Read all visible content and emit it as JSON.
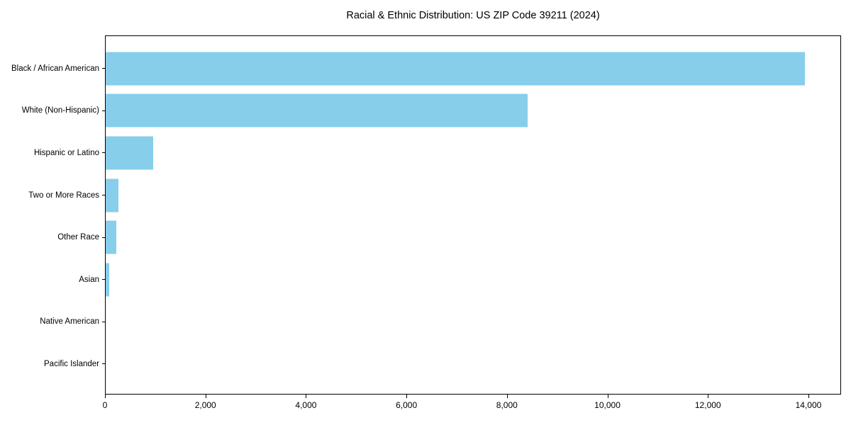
{
  "chart_data": {
    "type": "bar",
    "orientation": "horizontal",
    "title": "Racial & Ethnic Distribution: US ZIP Code 39211 (2024)",
    "categories": [
      "Black / African American",
      "White (Non-Hispanic)",
      "Hispanic or Latino",
      "Two or More Races",
      "Other Race",
      "Asian",
      "Native American",
      "Pacific Islander"
    ],
    "values": [
      13950,
      8420,
      950,
      260,
      210,
      65,
      0,
      0
    ],
    "xlabel": "",
    "ylabel": "",
    "xlim": [
      0,
      14650
    ],
    "x_ticks": [
      0,
      2000,
      4000,
      6000,
      8000,
      10000,
      12000,
      14000
    ],
    "x_tick_labels": [
      "0",
      "2,000",
      "4,000",
      "6,000",
      "8,000",
      "10,000",
      "12,000",
      "14,000"
    ],
    "bar_color": "#87CEEB",
    "grid": false,
    "legend": false
  }
}
